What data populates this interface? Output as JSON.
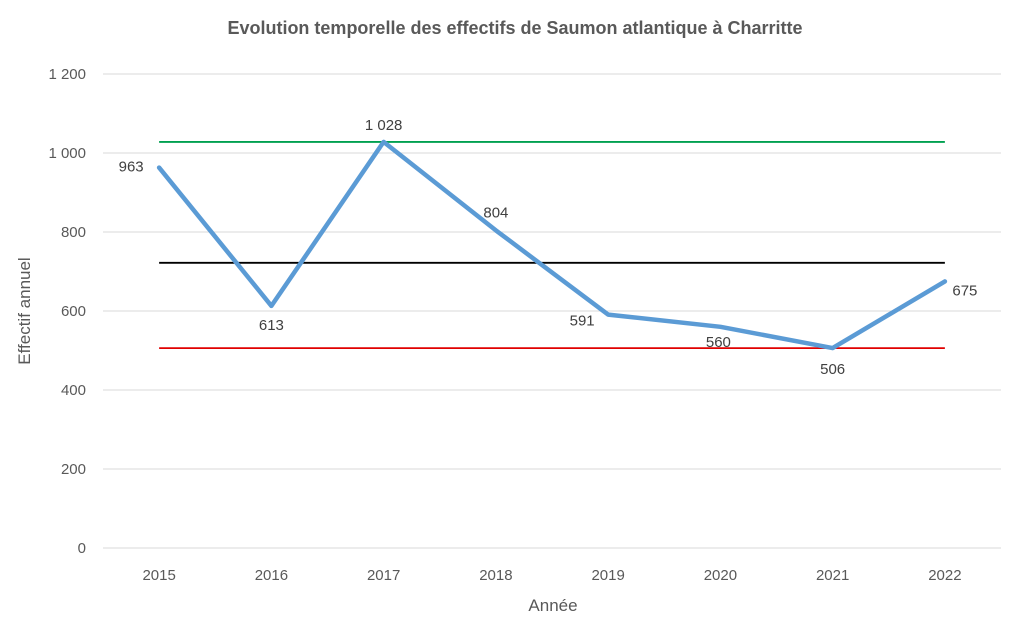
{
  "chart_data": {
    "type": "line",
    "title": "Evolution temporelle des effectifs de Saumon atlantique à Charritte",
    "xlabel": "Année",
    "ylabel": "Effectif annuel",
    "categories": [
      "2015",
      "2016",
      "2017",
      "2018",
      "2019",
      "2020",
      "2021",
      "2022"
    ],
    "series": [
      {
        "values": [
          963,
          613,
          1028,
          804,
          591,
          560,
          506,
          675
        ],
        "data_labels": [
          "963",
          "613",
          "1 028",
          "804",
          "591",
          "560",
          "506",
          "675"
        ],
        "color": "#5B9BD5"
      }
    ],
    "reference_lines": [
      {
        "value": 1028,
        "color": "#00A050"
      },
      {
        "value": 722,
        "color": "#000000"
      },
      {
        "value": 506,
        "color": "#E00000"
      }
    ],
    "ylim": [
      0,
      1200
    ],
    "y_ticks": [
      0,
      200,
      400,
      600,
      800,
      1000,
      1200
    ],
    "y_tick_labels": [
      "0",
      "200",
      "400",
      "600",
      "800",
      "1 000",
      "1 200"
    ],
    "grid": true,
    "legend": "none"
  }
}
